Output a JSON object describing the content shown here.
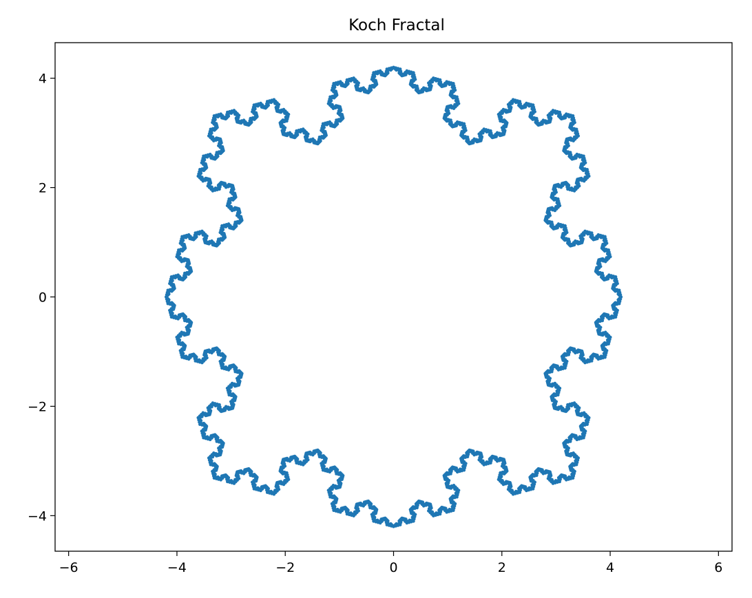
{
  "chart_data": {
    "type": "line",
    "title": "Koch Fractal",
    "xlabel": "",
    "ylabel": "",
    "xlim": [
      -6.25,
      6.25
    ],
    "ylim": [
      -4.65,
      4.65
    ],
    "xticks": [
      -6,
      -4,
      -2,
      0,
      2,
      4,
      6
    ],
    "yticks": [
      -4,
      -2,
      0,
      2,
      4
    ],
    "xtick_labels": [
      "−6",
      "−4",
      "−2",
      "0",
      "2",
      "4",
      "6"
    ],
    "ytick_labels": [
      "−4",
      "−2",
      "0",
      "2",
      "4"
    ],
    "grid": false,
    "legend": "none",
    "series": [
      {
        "shape": "koch-curve-cross",
        "construction": "four copies of a recursive Koch curve, each spanning between adjacent vertices of a square, bending inward",
        "vertices": [
          [
            4.2,
            0
          ],
          [
            0,
            4.2
          ],
          [
            -4.2,
            0
          ],
          [
            0,
            -4.2
          ]
        ],
        "iterations": 5,
        "marker": "dot",
        "color": "#1f77b4"
      }
    ]
  }
}
